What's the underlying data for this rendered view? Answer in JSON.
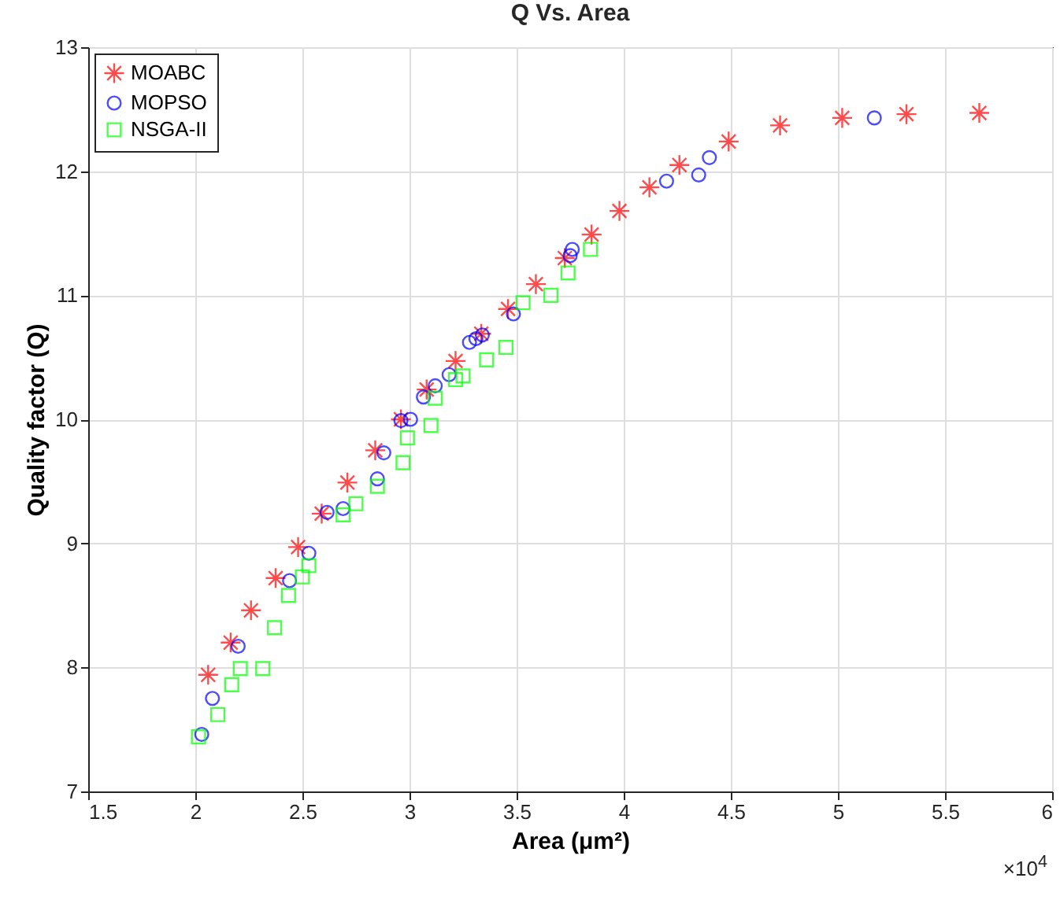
{
  "chart_data": {
    "type": "scatter",
    "title": "Q Vs. Area",
    "xlabel": "Area (μm²)",
    "ylabel": "Quality factor (Q)",
    "xlim": [
      1.5,
      6
    ],
    "xticks": [
      1.5,
      2,
      2.5,
      3,
      3.5,
      4,
      4.5,
      5,
      5.5,
      6
    ],
    "ylim": [
      7,
      13
    ],
    "yticks": [
      7,
      8,
      9,
      10,
      11,
      12,
      13
    ],
    "grid": true,
    "legend": "top left",
    "annotations": [
      "×10$^{4}$"
    ],
    "series": [
      {
        "name": "MOABC",
        "color": "#ff0000",
        "marker": "cross",
        "x": [
          2.06,
          2.165,
          2.26,
          2.375,
          2.48,
          2.59,
          2.71,
          2.84,
          2.96,
          3.08,
          3.215,
          3.335,
          3.46,
          3.59,
          3.725,
          3.85,
          3.98,
          4.12,
          4.26,
          4.49,
          4.73,
          5.02,
          5.32,
          5.66
        ],
        "values": [
          7.94,
          8.2,
          8.46,
          8.72,
          8.97,
          9.24,
          9.49,
          9.75,
          10.0,
          10.24,
          10.47,
          10.69,
          10.89,
          11.09,
          11.3,
          11.49,
          11.68,
          11.87,
          12.05,
          12.24,
          12.37,
          12.43,
          12.46,
          12.47
        ]
      },
      {
        "name": "MOPSO",
        "color": "#0000ff",
        "marker": "circle",
        "x": [
          2.03,
          2.08,
          2.2,
          2.44,
          2.53,
          2.615,
          2.69,
          2.85,
          2.88,
          2.96,
          3.005,
          3.065,
          3.12,
          3.185,
          3.28,
          3.31,
          3.34,
          3.485,
          3.75,
          3.76,
          4.2,
          4.35,
          4.4,
          5.17
        ],
        "values": [
          7.46,
          7.75,
          8.17,
          8.7,
          8.92,
          9.25,
          9.28,
          9.52,
          9.73,
          9.99,
          10.0,
          10.18,
          10.27,
          10.36,
          10.62,
          10.65,
          10.68,
          10.85,
          11.32,
          11.37,
          11.92,
          11.97,
          12.11,
          12.43
        ]
      },
      {
        "name": "NSGA-II",
        "color": "#00ff00",
        "marker": "square",
        "x": [
          2.015,
          2.105,
          2.17,
          2.21,
          2.315,
          2.37,
          2.435,
          2.5,
          2.53,
          2.69,
          2.75,
          2.85,
          2.97,
          2.99,
          3.1,
          3.12,
          3.215,
          3.25,
          3.36,
          3.45,
          3.53,
          3.66,
          3.74,
          3.845
        ],
        "values": [
          7.44,
          7.62,
          7.86,
          7.99,
          7.99,
          8.32,
          8.58,
          8.73,
          8.82,
          9.23,
          9.32,
          9.46,
          9.65,
          9.85,
          9.95,
          10.17,
          10.32,
          10.35,
          10.48,
          10.58,
          10.94,
          11.0,
          11.18,
          11.37
        ]
      }
    ]
  }
}
